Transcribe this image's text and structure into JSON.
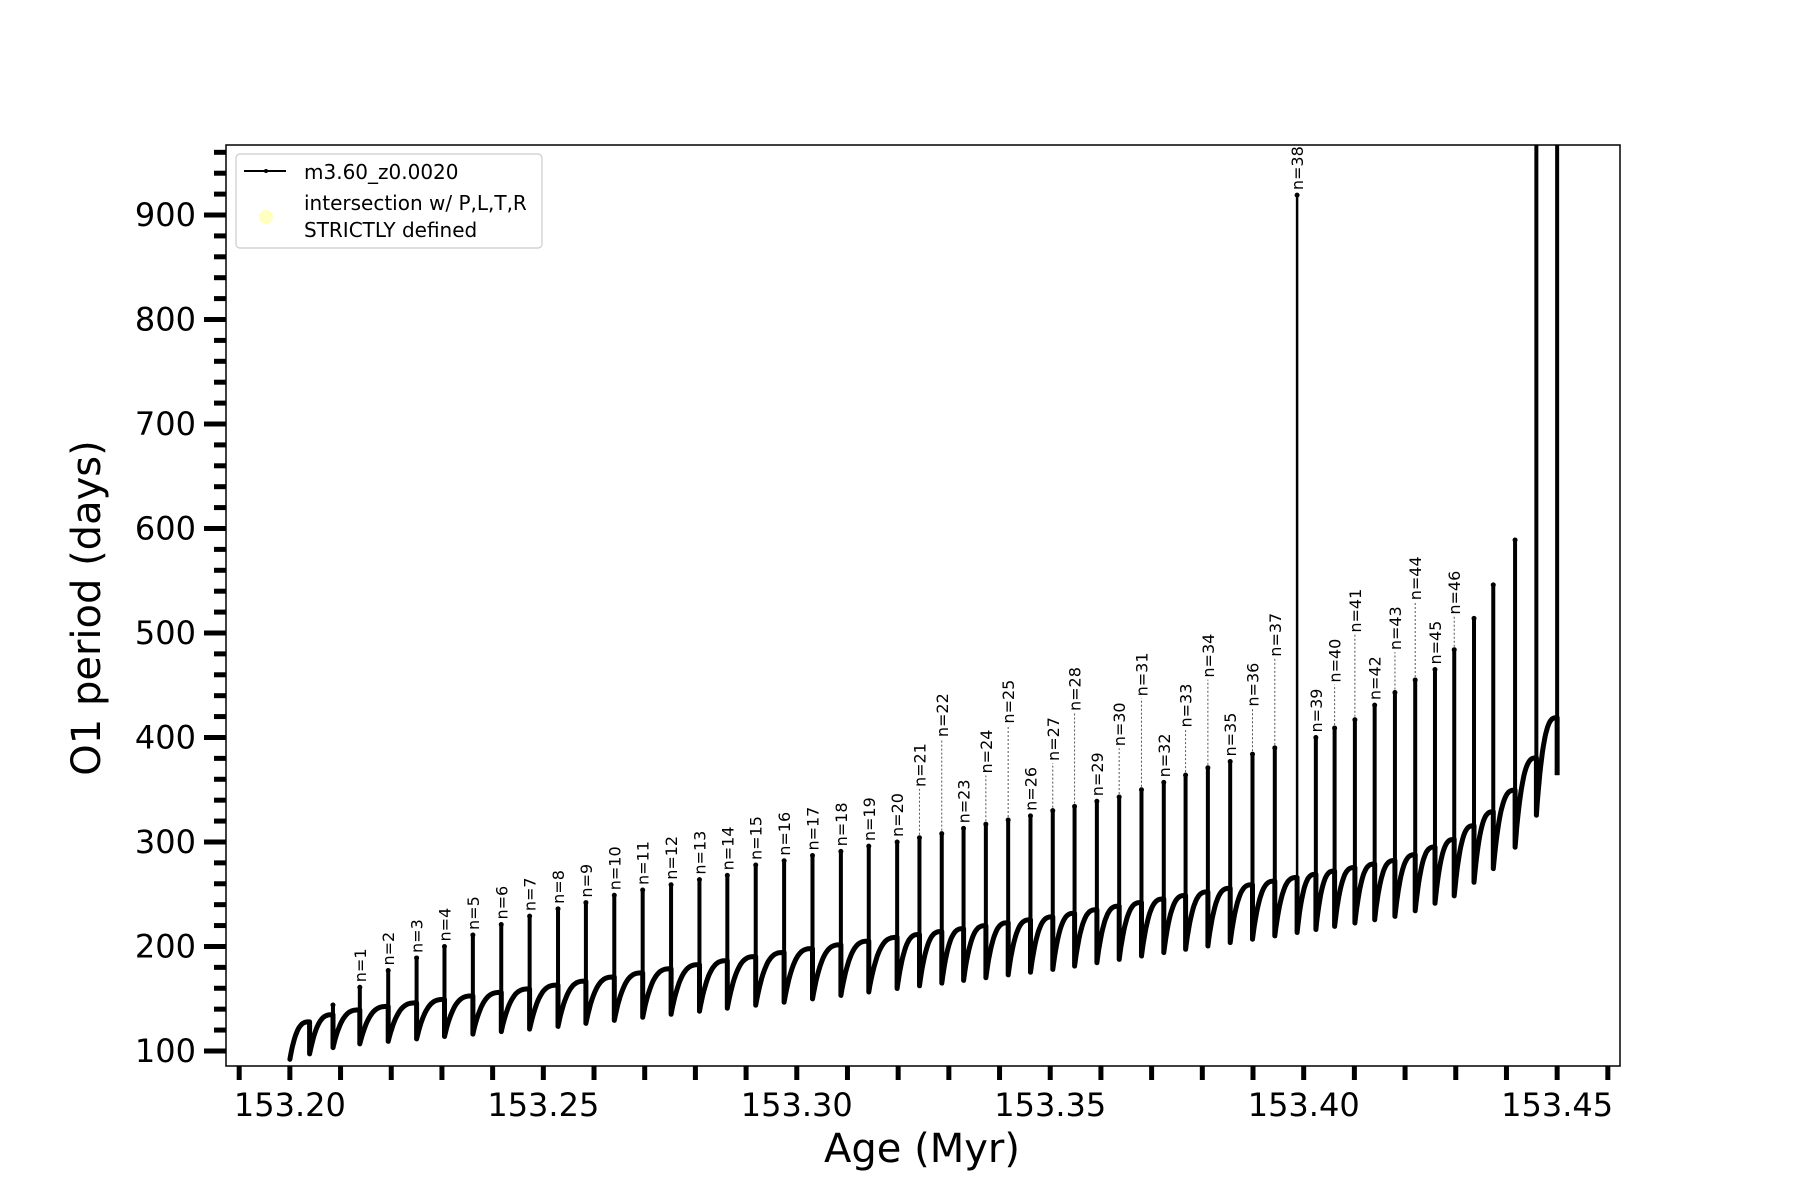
{
  "chart_data": {
    "type": "line",
    "title": "",
    "xlabel": "Age (Myr)",
    "ylabel": "O1 period (days)",
    "xlim": [
      153.1874,
      153.4624
    ],
    "ylim": [
      85.6,
      967
    ],
    "x_major_ticks": [
      "153.20",
      "153.25",
      "153.30",
      "153.35",
      "153.40",
      "153.45"
    ],
    "x_minor_step": 0.01,
    "y_major_ticks": [
      "100",
      "200",
      "300",
      "400",
      "500",
      "600",
      "700",
      "800",
      "900"
    ],
    "y_minor_step": 20,
    "grid": false,
    "legend": {
      "placement": "upper-left",
      "entries": [
        {
          "label": "m3.60_z0.0020",
          "marker": "line-dot",
          "color": "#000000"
        },
        {
          "label_lines": [
            "intersection w/ P,L,T,R",
            "STRICTLY defined"
          ],
          "marker": "circle",
          "color": "#ffffbf"
        }
      ]
    },
    "series_color": "#000000",
    "envelope": [
      [
        153.2,
        122
      ],
      [
        153.21,
        137
      ],
      [
        153.25,
        161
      ],
      [
        153.3,
        196
      ],
      [
        153.35,
        228
      ],
      [
        153.4,
        267
      ],
      [
        153.42,
        284
      ],
      [
        153.43,
        303
      ],
      [
        153.44,
        338
      ],
      [
        153.445,
        372
      ],
      [
        153.45,
        419
      ]
    ],
    "dip_depth": [
      [
        153.2,
        30
      ],
      [
        153.3,
        48
      ],
      [
        153.45,
        55
      ]
    ],
    "spikes": [
      {
        "age": 153.2039,
        "peak": 123,
        "label": ""
      },
      {
        "age": 153.2085,
        "peak": 144,
        "label": ""
      },
      {
        "age": 153.2138,
        "peak": 161,
        "label": "n=1"
      },
      {
        "age": 153.2194,
        "peak": 177,
        "label": "n=2"
      },
      {
        "age": 153.225,
        "peak": 189,
        "label": "n=3"
      },
      {
        "age": 153.2305,
        "peak": 200,
        "label": "n=4"
      },
      {
        "age": 153.2361,
        "peak": 211,
        "label": "n=5"
      },
      {
        "age": 153.2417,
        "peak": 221,
        "label": "n=6"
      },
      {
        "age": 153.2473,
        "peak": 229,
        "label": "n=7"
      },
      {
        "age": 153.2529,
        "peak": 236,
        "label": "n=8"
      },
      {
        "age": 153.2584,
        "peak": 242,
        "label": "n=9"
      },
      {
        "age": 153.264,
        "peak": 249,
        "label": "n=10"
      },
      {
        "age": 153.2696,
        "peak": 254,
        "label": "n=11"
      },
      {
        "age": 153.2752,
        "peak": 259,
        "label": "n=12"
      },
      {
        "age": 153.2808,
        "peak": 264,
        "label": "n=13"
      },
      {
        "age": 153.2863,
        "peak": 268,
        "label": "n=14"
      },
      {
        "age": 153.2919,
        "peak": 278,
        "label": "n=15"
      },
      {
        "age": 153.2975,
        "peak": 282,
        "label": "n=16"
      },
      {
        "age": 153.3031,
        "peak": 287,
        "label": "n=17"
      },
      {
        "age": 153.3087,
        "peak": 291,
        "label": "n=18"
      },
      {
        "age": 153.3142,
        "peak": 296,
        "label": "n=19"
      },
      {
        "age": 153.3198,
        "peak": 300,
        "label": "n=20"
      },
      {
        "age": 153.3242,
        "peak": 304,
        "label": "n=21"
      },
      {
        "age": 153.3286,
        "peak": 308,
        "label": "n=22"
      },
      {
        "age": 153.3329,
        "peak": 313,
        "label": "n=23"
      },
      {
        "age": 153.3373,
        "peak": 317,
        "label": "n=24"
      },
      {
        "age": 153.3417,
        "peak": 321,
        "label": "n=25"
      },
      {
        "age": 153.3461,
        "peak": 325,
        "label": "n=26"
      },
      {
        "age": 153.3505,
        "peak": 330,
        "label": "n=27"
      },
      {
        "age": 153.3548,
        "peak": 334,
        "label": "n=28"
      },
      {
        "age": 153.3592,
        "peak": 339,
        "label": "n=29"
      },
      {
        "age": 153.3636,
        "peak": 343,
        "label": "n=30"
      },
      {
        "age": 153.368,
        "peak": 350,
        "label": "n=31"
      },
      {
        "age": 153.3724,
        "peak": 357,
        "label": "n=32"
      },
      {
        "age": 153.3767,
        "peak": 364,
        "label": "n=33"
      },
      {
        "age": 153.3811,
        "peak": 371,
        "label": "n=34"
      },
      {
        "age": 153.3855,
        "peak": 377,
        "label": "n=35"
      },
      {
        "age": 153.3899,
        "peak": 384,
        "label": "n=36"
      },
      {
        "age": 153.3943,
        "peak": 390,
        "label": "n=37"
      },
      {
        "age": 153.3987,
        "peak": 919,
        "label": "n=38"
      },
      {
        "age": 153.4024,
        "peak": 400,
        "label": "n=39"
      },
      {
        "age": 153.4061,
        "peak": 409,
        "label": "n=40"
      },
      {
        "age": 153.4101,
        "peak": 417,
        "label": "n=41"
      },
      {
        "age": 153.414,
        "peak": 431,
        "label": "n=42"
      },
      {
        "age": 153.418,
        "peak": 443,
        "label": "n=43"
      },
      {
        "age": 153.422,
        "peak": 455,
        "label": "n=44"
      },
      {
        "age": 153.4259,
        "peak": 465,
        "label": "n=45"
      },
      {
        "age": 153.4297,
        "peak": 484,
        "label": "n=46"
      },
      {
        "age": 153.4336,
        "peak": 514,
        "label": ""
      },
      {
        "age": 153.4374,
        "peak": 546,
        "label": ""
      },
      {
        "age": 153.4417,
        "peak": 589,
        "label": ""
      },
      {
        "age": 153.4459,
        "peak": null,
        "exceeds_ylim": true,
        "label": ""
      },
      {
        "age": 153.45,
        "peak": null,
        "exceeds_ylim": true,
        "label": ""
      }
    ]
  }
}
